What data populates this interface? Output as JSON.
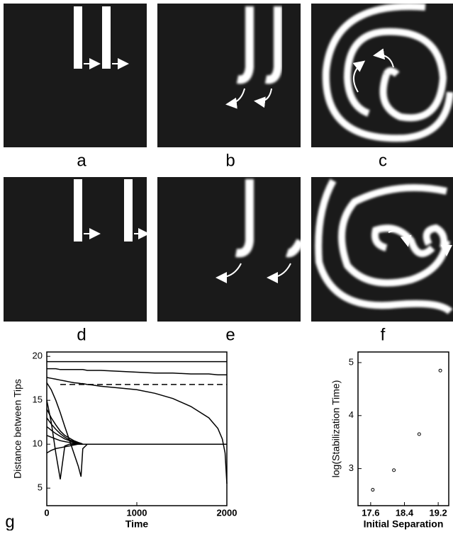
{
  "panels": {
    "labels": [
      "a",
      "b",
      "c",
      "d",
      "e",
      "f"
    ]
  },
  "chart_data": [
    {
      "type": "line",
      "panel_label": "g",
      "xlabel": "Time",
      "ylabel": "Distance between Tips",
      "xlim": [
        0,
        2000
      ],
      "ylim": [
        3,
        20.5
      ],
      "xticks": [
        0,
        1000,
        2000
      ],
      "yticks": [
        5,
        10,
        15,
        20
      ],
      "x": [
        0,
        50,
        100,
        150,
        200,
        250,
        300,
        350,
        380,
        400,
        450,
        500,
        600,
        800,
        1000,
        1200,
        1400,
        1600,
        1800,
        1900,
        1950,
        1980,
        2000
      ],
      "series": [
        {
          "color": "#000000",
          "values": [
            19.4,
            19.4,
            19.4,
            19.4,
            19.4,
            19.4,
            19.4,
            19.4,
            19.4,
            19.4,
            19.4,
            19.4,
            19.4,
            19.4,
            19.4,
            19.4,
            19.4,
            19.4,
            19.4,
            19.4,
            19.4,
            19.4,
            19.4
          ]
        },
        {
          "color": "#000000",
          "values": [
            18.6,
            18.6,
            18.6,
            18.5,
            18.5,
            18.5,
            18.5,
            18.5,
            18.5,
            18.5,
            18.4,
            18.4,
            18.4,
            18.3,
            18.2,
            18.1,
            18.1,
            18,
            18,
            17.9,
            17.9,
            17.9,
            17.9
          ]
        },
        {
          "color": "#000000",
          "values": [
            17.6,
            17.5,
            17.4,
            17.3,
            17.2,
            17.1,
            17,
            16.95,
            16.9,
            16.9,
            16.8,
            16.75,
            16.6,
            16.4,
            16.2,
            15.8,
            15.2,
            14.3,
            13,
            11.8,
            10.6,
            9,
            5.5
          ]
        },
        {
          "color": "#000000",
          "dashed": true,
          "values": [
            null,
            null,
            null,
            16.8,
            16.8,
            16.8,
            16.8,
            16.8,
            16.8,
            16.8,
            16.8,
            16.8,
            16.8,
            16.8,
            16.8,
            16.8,
            16.8,
            16.8,
            16.8,
            16.8,
            16.8,
            16.8,
            16.8
          ]
        },
        {
          "color": "#000000",
          "values": [
            17,
            16.2,
            15,
            13.6,
            12,
            10.5,
            9,
            7.5,
            6.3,
            9.5,
            10,
            10,
            10,
            10,
            10,
            10,
            10,
            10,
            10,
            10,
            10,
            10,
            10
          ]
        },
        {
          "color": "#000000",
          "values": [
            15,
            12.5,
            9,
            6,
            9.8,
            10,
            10,
            10,
            10,
            10,
            10,
            10,
            10,
            10,
            10,
            10,
            10,
            10,
            10,
            10,
            10,
            10,
            10
          ]
        },
        {
          "color": "#000000",
          "values": [
            14,
            13,
            12.2,
            11.5,
            11,
            10.7,
            10.4,
            10.2,
            10.1,
            10,
            10,
            10,
            10,
            10,
            10,
            10,
            10,
            10,
            10,
            10,
            10,
            10,
            10
          ]
        },
        {
          "color": "#000000",
          "values": [
            13,
            12.3,
            11.7,
            11.2,
            10.8,
            10.5,
            10.3,
            10.1,
            10.05,
            10,
            10,
            10,
            10,
            10,
            10,
            10,
            10,
            10,
            10,
            10,
            10,
            10,
            10
          ]
        },
        {
          "color": "#000000",
          "values": [
            12,
            11.6,
            11.2,
            10.9,
            10.6,
            10.4,
            10.2,
            10.1,
            10,
            10,
            10,
            10,
            10,
            10,
            10,
            10,
            10,
            10,
            10,
            10,
            10,
            10,
            10
          ]
        },
        {
          "color": "#000000",
          "values": [
            11,
            10.8,
            10.6,
            10.4,
            10.3,
            10.2,
            10.1,
            10,
            10,
            10,
            10,
            10,
            10,
            10,
            10,
            10,
            10,
            10,
            10,
            10,
            10,
            10,
            10
          ]
        },
        {
          "color": "#000000",
          "values": [
            9,
            9.3,
            9.5,
            9.6,
            9.7,
            9.8,
            9.9,
            10,
            10,
            10,
            10,
            10,
            10,
            10,
            10,
            10,
            10,
            10,
            10,
            10,
            10,
            10,
            10
          ]
        }
      ]
    },
    {
      "type": "scatter",
      "xlabel": "Initial Separation",
      "ylabel": "log(Stabilization Time)",
      "xlim": [
        17.3,
        19.45
      ],
      "ylim": [
        2.3,
        5.2
      ],
      "xticks": [
        17.6,
        18.4,
        19.2
      ],
      "yticks": [
        3,
        4,
        5
      ],
      "x": [
        17.65,
        18.15,
        18.75,
        19.25
      ],
      "values": [
        2.6,
        2.97,
        3.65,
        4.85
      ],
      "color": "#000000"
    }
  ]
}
